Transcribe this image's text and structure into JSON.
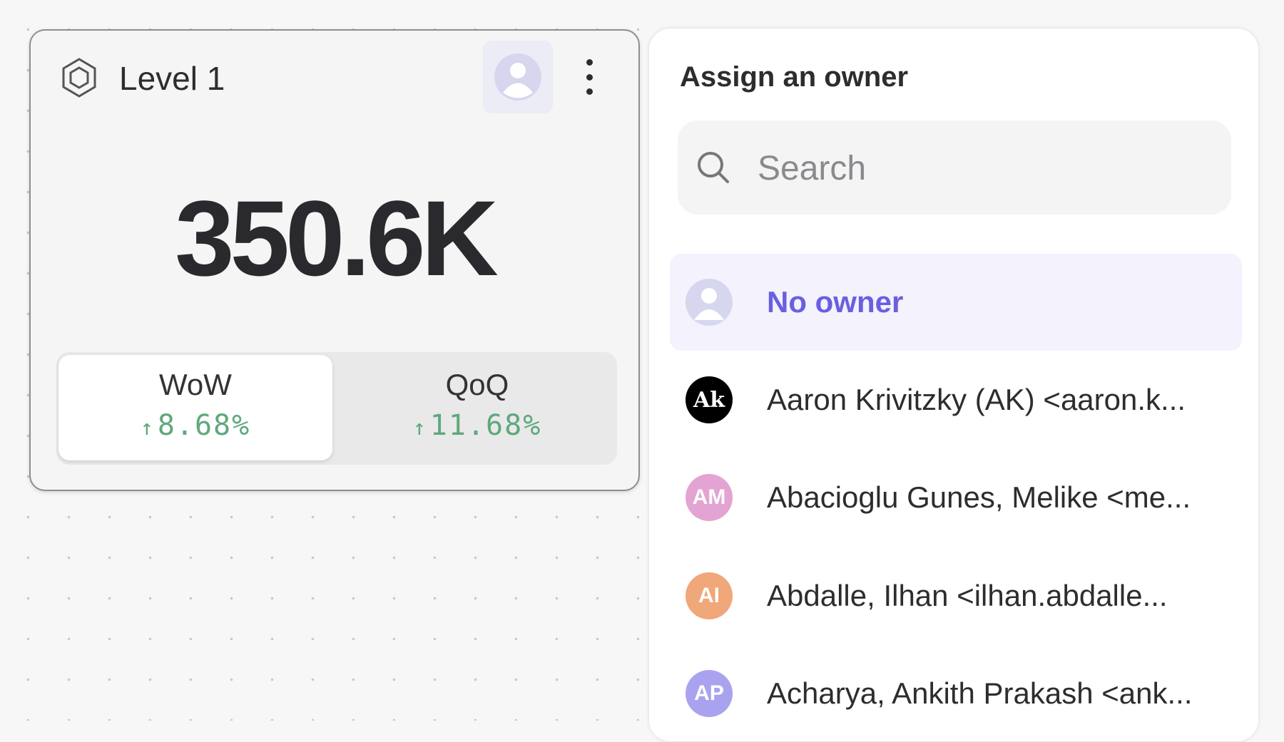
{
  "card": {
    "title": "Level 1",
    "value": "350.6K",
    "icon": "hexagon-icon",
    "comparisons": [
      {
        "label": "WoW",
        "change": "8.68%",
        "direction": "up",
        "active": true
      },
      {
        "label": "QoQ",
        "change": "11.68%",
        "direction": "up",
        "active": false
      }
    ],
    "arrow": "↑"
  },
  "owner_panel": {
    "title": "Assign an owner",
    "search_placeholder": "Search",
    "search_value": "",
    "options": [
      {
        "name": "No owner",
        "initials": "",
        "color": "#d6d6ee",
        "selected": true
      },
      {
        "name": "Aaron Krivitzky (AK) <aaron.k...",
        "initials": "Ak",
        "color": "#000000"
      },
      {
        "name": "Abacioglu Gunes, Melike <me...",
        "initials": "AM",
        "color": "#e3a3d3"
      },
      {
        "name": "Abdalle, Ilhan <ilhan.abdalle...",
        "initials": "AI",
        "color": "#f0a77a"
      },
      {
        "name": "Acharya, Ankith Prakash <ank...",
        "initials": "AP",
        "color": "#a9a3ef"
      }
    ]
  },
  "colors": {
    "accent": "#6a5fe0",
    "positive": "#5fa87c"
  }
}
